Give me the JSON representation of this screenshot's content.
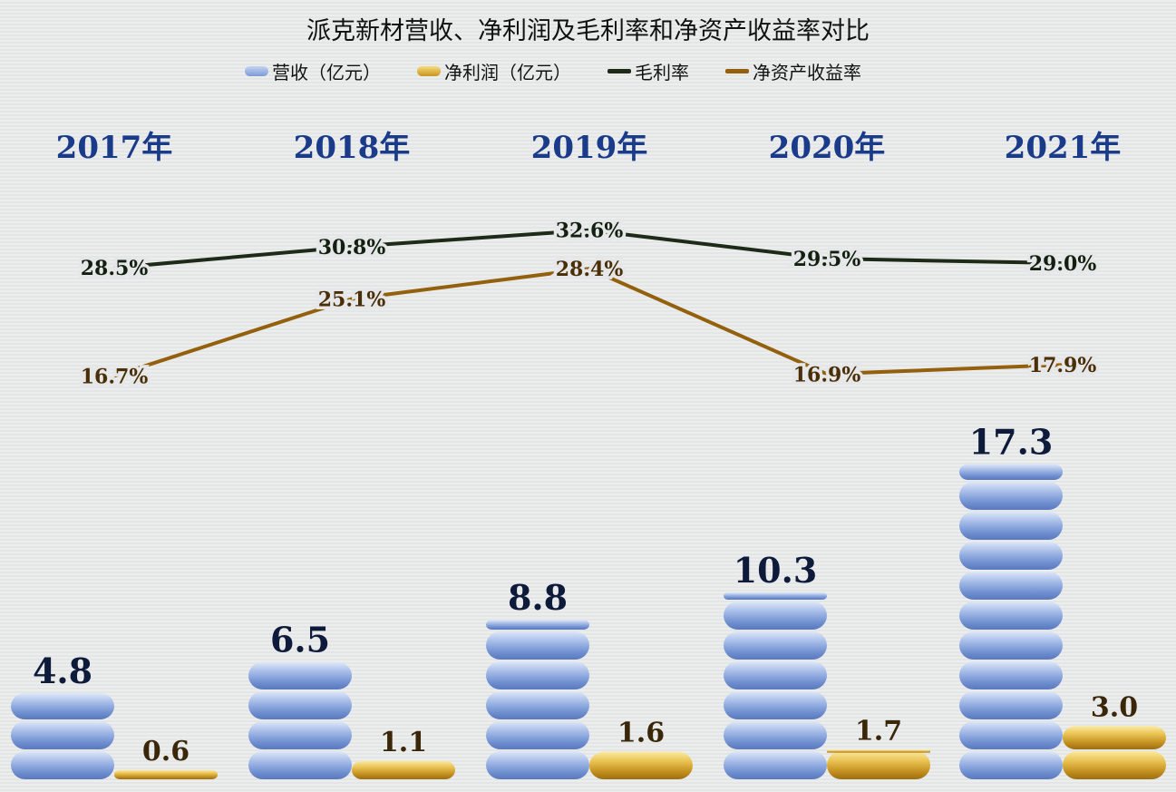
{
  "chart_data": {
    "type": "bar+line",
    "title": "派克新材营收、净利润及毛利率和净资产收益率对比",
    "categories": [
      "2017年",
      "2018年",
      "2019年",
      "2020年",
      "2021年"
    ],
    "series": [
      {
        "name": "营收（亿元）",
        "type": "bar",
        "color": "#7b9bd6",
        "values": [
          4.8,
          6.5,
          8.8,
          10.3,
          17.3
        ],
        "labels": [
          "4.8",
          "6.5",
          "8.8",
          "10.3",
          "17.3"
        ]
      },
      {
        "name": "净利润（亿元）",
        "type": "bar",
        "color": "#d9ad2e",
        "values": [
          0.6,
          1.1,
          1.6,
          1.7,
          3.0
        ],
        "labels": [
          "0.6",
          "1.1",
          "1.6",
          "1.7",
          "3.0"
        ]
      },
      {
        "name": "毛利率",
        "type": "line",
        "color": "#1c2a17",
        "values": [
          28.5,
          30.8,
          32.6,
          29.5,
          29.0
        ],
        "labels": [
          "28.5%",
          "30.8%",
          "32.6%",
          "29.5%",
          "29.0%"
        ]
      },
      {
        "name": "净资产收益率",
        "type": "line",
        "color": "#93600e",
        "values": [
          16.7,
          25.1,
          28.4,
          16.9,
          17.9
        ],
        "labels": [
          "16.7%",
          "25.1%",
          "28.4%",
          "16.9%",
          "17.9%"
        ]
      }
    ],
    "legend_position": "top",
    "grid": false,
    "category_label_color": "#1a3a8a"
  }
}
